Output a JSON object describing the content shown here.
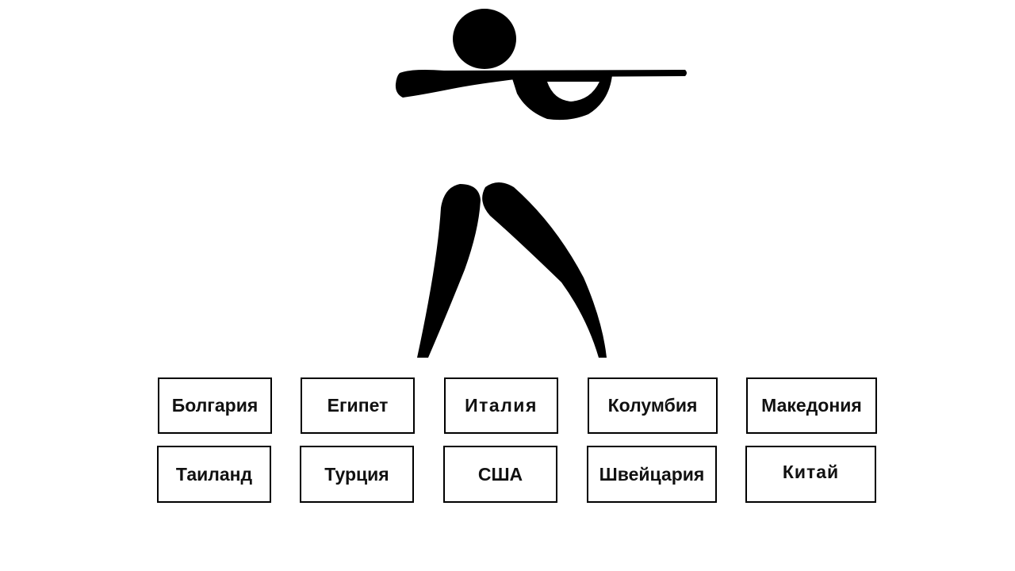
{
  "pictogram": {
    "icon": "shooting-pictogram-icon",
    "color": "#000000"
  },
  "countries": {
    "row1": [
      "Болгария",
      "Египет",
      "Италия",
      "Колумбия",
      "Македония"
    ],
    "row2": [
      "Таиланд",
      "Турция",
      "США",
      "Швейцария",
      "Китай"
    ]
  }
}
